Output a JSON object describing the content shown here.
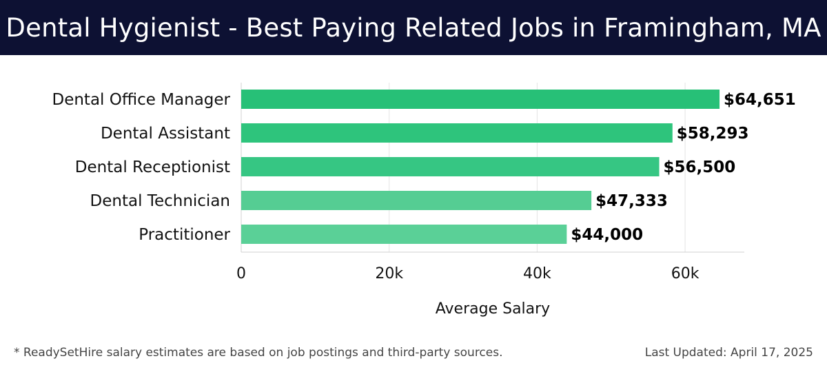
{
  "header": {
    "title": "Dental Hygienist - Best Paying Related Jobs in Framingham, MA"
  },
  "chart_data": {
    "type": "bar",
    "orientation": "horizontal",
    "categories": [
      "Dental Office Manager",
      "Dental Assistant",
      "Dental Receptionist",
      "Dental Technician",
      "Practitioner"
    ],
    "values": [
      64651,
      58293,
      56500,
      47333,
      44000
    ],
    "value_labels": [
      "$64,651",
      "$58,293",
      "$56,500",
      "$47,333",
      "$44,000"
    ],
    "xlabel": "Average Salary",
    "ylabel": "",
    "xlim": [
      0,
      68000
    ],
    "x_ticks": [
      0,
      20000,
      40000,
      60000
    ],
    "x_tick_labels": [
      "0",
      "20k",
      "40k",
      "60k"
    ],
    "grid": true,
    "bar_colors": [
      "#27c077",
      "#2ec47c",
      "#36c683",
      "#55cd93",
      "#5ad097"
    ]
  },
  "footer": {
    "note": "* ReadySetHire salary estimates are based on job postings and third-party sources.",
    "updated": "Last Updated: April 17, 2025"
  }
}
